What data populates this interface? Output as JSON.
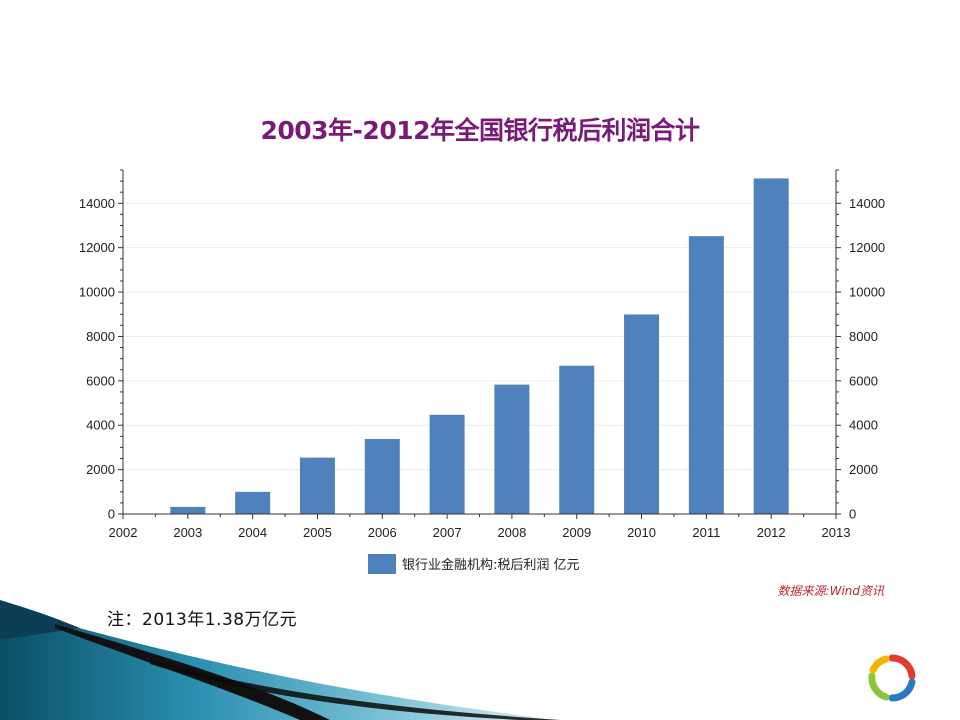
{
  "chart_data": {
    "type": "bar",
    "title": "2003年-2012年全国银行税后利润合计",
    "x_ticks": [
      "2002",
      "2003",
      "2004",
      "2005",
      "2006",
      "2007",
      "2008",
      "2009",
      "2010",
      "2011",
      "2012",
      "2013"
    ],
    "categories": [
      "2003",
      "2004",
      "2005",
      "2006",
      "2007",
      "2008",
      "2009",
      "2010",
      "2011",
      "2012"
    ],
    "series": [
      {
        "name": "银行业金融机构:税后利润 亿元",
        "values": [
          320,
          1000,
          2540,
          3380,
          4470,
          5830,
          6680,
          8990,
          12520,
          15120
        ]
      }
    ],
    "ylim": [
      0,
      15500
    ],
    "y_ticks": [
      0,
      2000,
      4000,
      6000,
      8000,
      10000,
      12000,
      14000
    ],
    "xlabel": "",
    "ylabel": "",
    "dual_y_axis": true,
    "grid": true,
    "legend_position": "bottom",
    "bar_color": "#4f81bd"
  },
  "source_note": "数据来源:Wind资讯",
  "footnote": "注：2013年1.38万亿元"
}
